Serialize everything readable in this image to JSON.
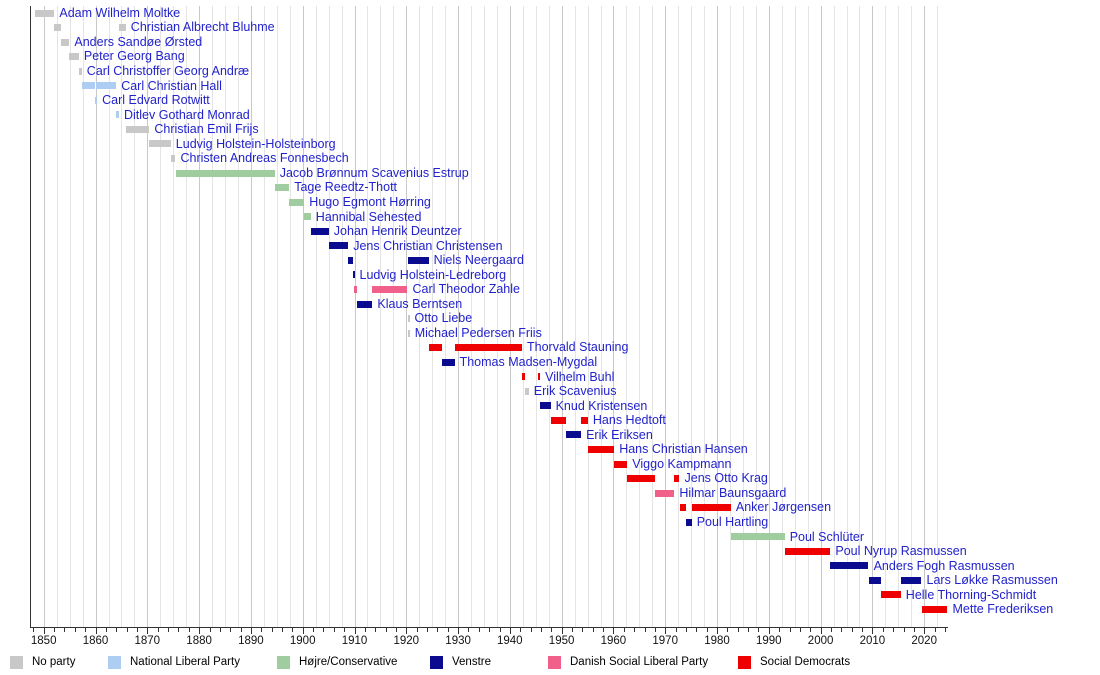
{
  "chart_data": {
    "type": "timeline",
    "description": "Gantt-style timeline of Danish prime ministers and their terms in office, colored by party",
    "x_axis": {
      "domain": [
        1847.35,
        2024.6
      ],
      "major_ticks": [
        1850,
        1860,
        1870,
        1880,
        1890,
        1900,
        1910,
        1920,
        1930,
        1940,
        1950,
        1960,
        1970,
        1980,
        1990,
        2000,
        2010,
        2020
      ],
      "minor_tick_step_years": 2,
      "gridline_step_years": 2.5,
      "grid": true
    },
    "parties": {
      "no_party": {
        "label": "No party",
        "color": "#c8c8c8"
      },
      "national_liberal": {
        "label": "National Liberal Party",
        "color": "#aecdf2"
      },
      "hojre_conservative": {
        "label": "Højre/Conservative",
        "color": "#9fcd9f"
      },
      "venstre": {
        "label": "Venstre",
        "color": "#0b0b8f"
      },
      "social_liberal": {
        "label": "Danish Social Liberal Party",
        "color": "#f0608a"
      },
      "social_democrats": {
        "label": "Social Democrats",
        "color": "#ee0000"
      }
    },
    "legend_order": [
      "no_party",
      "national_liberal",
      "hojre_conservative",
      "venstre",
      "social_liberal",
      "social_democrats"
    ],
    "rows": [
      {
        "name": "Adam Wilhelm Moltke",
        "party": "no_party",
        "terms": [
          [
            1848.22,
            1852.07
          ]
        ]
      },
      {
        "name": "Christian Albrecht Bluhme",
        "party": "no_party",
        "terms": [
          [
            1852.07,
            1853.3
          ],
          [
            1864.53,
            1865.85
          ]
        ]
      },
      {
        "name": "Anders Sandøe Ørsted",
        "party": "no_party",
        "terms": [
          [
            1853.3,
            1854.95
          ]
        ]
      },
      {
        "name": "Peter Georg Bang",
        "party": "no_party",
        "terms": [
          [
            1854.95,
            1856.8
          ]
        ]
      },
      {
        "name": "Carl Christoffer Georg Andræ",
        "party": "no_party",
        "terms": [
          [
            1856.8,
            1857.36
          ]
        ]
      },
      {
        "name": "Carl Christian Hall",
        "party": "national_liberal",
        "terms": [
          [
            1857.36,
            1859.92
          ],
          [
            1860.15,
            1863.99
          ]
        ]
      },
      {
        "name": "Carl Edvard Rotwitt",
        "party": "national_liberal",
        "terms": [
          [
            1859.92,
            1860.1
          ]
        ]
      },
      {
        "name": "Ditlev Gothard Monrad",
        "party": "national_liberal",
        "terms": [
          [
            1863.99,
            1864.53
          ]
        ]
      },
      {
        "name": "Christian Emil Frijs",
        "party": "no_party",
        "terms": [
          [
            1865.85,
            1870.4
          ]
        ]
      },
      {
        "name": "Ludvig Holstein-Holsteinborg",
        "party": "no_party",
        "terms": [
          [
            1870.4,
            1874.53
          ]
        ]
      },
      {
        "name": "Christen Andreas Fonnesbech",
        "party": "no_party",
        "terms": [
          [
            1874.53,
            1875.44
          ]
        ]
      },
      {
        "name": "Jacob Brønnum Scavenius Estrup",
        "party": "hojre_conservative",
        "terms": [
          [
            1875.44,
            1894.6
          ]
        ]
      },
      {
        "name": "Tage Reedtz-Thott",
        "party": "hojre_conservative",
        "terms": [
          [
            1894.6,
            1897.39
          ]
        ]
      },
      {
        "name": "Hugo Egmont Hørring",
        "party": "hojre_conservative",
        "terms": [
          [
            1897.39,
            1900.32
          ]
        ]
      },
      {
        "name": "Hannibal Sehested",
        "party": "hojre_conservative",
        "terms": [
          [
            1900.32,
            1901.56
          ]
        ]
      },
      {
        "name": "Johan Henrik Deuntzer",
        "party": "venstre",
        "terms": [
          [
            1901.56,
            1905.04
          ]
        ]
      },
      {
        "name": "Jens Christian Christensen",
        "party": "venstre",
        "terms": [
          [
            1905.04,
            1908.78
          ]
        ]
      },
      {
        "name": "Niels Neergaard",
        "party": "venstre",
        "terms": [
          [
            1908.78,
            1909.62
          ],
          [
            1920.34,
            1924.31
          ]
        ]
      },
      {
        "name": "Ludvig Holstein-Ledreborg",
        "party": "venstre",
        "terms": [
          [
            1909.62,
            1909.82
          ]
        ]
      },
      {
        "name": "Carl Theodor Zahle",
        "party": "social_liberal",
        "terms": [
          [
            1909.82,
            1910.51
          ],
          [
            1913.47,
            1920.24
          ]
        ]
      },
      {
        "name": "Klaus Berntsen",
        "party": "venstre",
        "terms": [
          [
            1910.51,
            1913.47
          ]
        ]
      },
      {
        "name": "Otto Liebe",
        "party": "no_party",
        "terms": [
          [
            1920.24,
            1920.27
          ]
        ]
      },
      {
        "name": "Michael Pedersen Friis",
        "party": "no_party",
        "terms": [
          [
            1920.27,
            1920.34
          ]
        ]
      },
      {
        "name": "Thorvald Stauning",
        "party": "social_democrats",
        "terms": [
          [
            1924.31,
            1926.95
          ],
          [
            1929.33,
            1942.34
          ]
        ]
      },
      {
        "name": "Thomas Madsen-Mygdal",
        "party": "venstre",
        "terms": [
          [
            1926.95,
            1929.33
          ]
        ]
      },
      {
        "name": "Vilhelm Buhl",
        "party": "social_democrats",
        "terms": [
          [
            1942.34,
            1942.86
          ],
          [
            1945.34,
            1945.85
          ]
        ]
      },
      {
        "name": "Erik Scavenius",
        "party": "no_party",
        "terms": [
          [
            1942.86,
            1943.66
          ]
        ]
      },
      {
        "name": "Knud Kristensen",
        "party": "venstre",
        "terms": [
          [
            1945.85,
            1947.87
          ]
        ]
      },
      {
        "name": "Hans Hedtoft",
        "party": "social_democrats",
        "terms": [
          [
            1947.87,
            1950.83
          ],
          [
            1953.75,
            1955.08
          ]
        ]
      },
      {
        "name": "Erik Eriksen",
        "party": "venstre",
        "terms": [
          [
            1950.83,
            1953.75
          ]
        ]
      },
      {
        "name": "Hans Christian Hansen",
        "party": "social_democrats",
        "terms": [
          [
            1955.08,
            1960.14
          ]
        ]
      },
      {
        "name": "Viggo Kampmann",
        "party": "social_democrats",
        "terms": [
          [
            1960.14,
            1962.67
          ]
        ]
      },
      {
        "name": "Jens Otto Krag",
        "party": "social_democrats",
        "terms": [
          [
            1962.67,
            1968.09
          ],
          [
            1971.78,
            1972.76
          ]
        ]
      },
      {
        "name": "Hilmar Baunsgaard",
        "party": "social_liberal",
        "terms": [
          [
            1968.09,
            1971.78
          ]
        ]
      },
      {
        "name": "Anker Jørgensen",
        "party": "social_democrats",
        "terms": [
          [
            1972.76,
            1973.96
          ],
          [
            1975.12,
            1982.69
          ]
        ]
      },
      {
        "name": "Poul Hartling",
        "party": "venstre",
        "terms": [
          [
            1973.96,
            1975.12
          ]
        ]
      },
      {
        "name": "Poul Schlüter",
        "party": "hojre_conservative",
        "terms": [
          [
            1982.69,
            1993.07
          ]
        ]
      },
      {
        "name": "Poul Nyrup Rasmussen",
        "party": "social_democrats",
        "terms": [
          [
            1993.07,
            2001.9
          ]
        ]
      },
      {
        "name": "Anders Fogh Rasmussen",
        "party": "venstre",
        "terms": [
          [
            2001.9,
            2009.26
          ]
        ]
      },
      {
        "name": "Lars Løkke Rasmussen",
        "party": "venstre",
        "terms": [
          [
            2009.26,
            2011.75
          ],
          [
            2015.49,
            2019.49
          ]
        ]
      },
      {
        "name": "Helle Thorning-Schmidt",
        "party": "social_democrats",
        "terms": [
          [
            2011.75,
            2015.49
          ]
        ]
      },
      {
        "name": "Mette Frederiksen",
        "party": "social_democrats",
        "terms": [
          [
            2019.49,
            2024.5
          ]
        ]
      }
    ],
    "colors": {
      "name_label": "#2222cc",
      "axis": "#333333",
      "gridline_minor": "#e4e4e4",
      "gridline_decade": "#c9c9c9",
      "tick_label": "#111111"
    }
  }
}
